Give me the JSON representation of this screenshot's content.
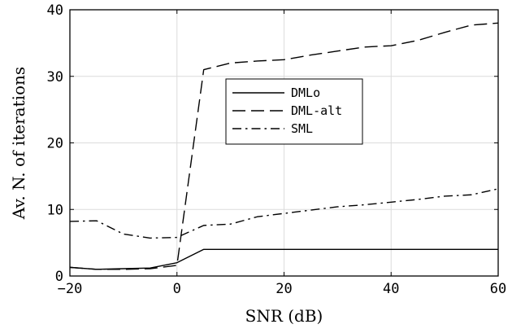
{
  "chart_data": {
    "type": "line",
    "title": "",
    "xlabel": "SNR (dB)",
    "ylabel": "Av. N. of iterations",
    "xlim": [
      -20,
      60
    ],
    "ylim": [
      0,
      40
    ],
    "xticks": [
      -20,
      0,
      20,
      40,
      60
    ],
    "yticks": [
      0,
      10,
      20,
      30,
      40
    ],
    "grid": true,
    "legend_position": "upper-middle",
    "series": [
      {
        "name": "DMLo",
        "style": "solid",
        "x": [
          -20,
          -15,
          -10,
          -5,
          0,
          5,
          10,
          15,
          20,
          25,
          30,
          35,
          40,
          45,
          50,
          55,
          60
        ],
        "y": [
          1.3,
          1.0,
          1.1,
          1.2,
          2.0,
          4.0,
          4.0,
          4.0,
          4.0,
          4.0,
          4.0,
          4.0,
          4.0,
          4.0,
          4.0,
          4.0,
          4.0
        ]
      },
      {
        "name": "DML-alt",
        "style": "dashed",
        "x": [
          -20,
          -15,
          -10,
          -5,
          0,
          5,
          10,
          15,
          20,
          25,
          30,
          35,
          40,
          45,
          50,
          55,
          60
        ],
        "y": [
          1.3,
          1.0,
          1.0,
          1.1,
          1.6,
          31.0,
          32.0,
          32.3,
          32.5,
          33.2,
          33.8,
          34.4,
          34.6,
          35.4,
          36.6,
          37.7,
          38.0
        ]
      },
      {
        "name": "SML",
        "style": "dashdot",
        "x": [
          -20,
          -15,
          -10,
          -5,
          0,
          5,
          10,
          15,
          20,
          25,
          30,
          35,
          40,
          45,
          50,
          55,
          60
        ],
        "y": [
          8.2,
          8.3,
          6.3,
          5.7,
          5.8,
          7.6,
          7.8,
          8.9,
          9.4,
          9.9,
          10.4,
          10.7,
          11.1,
          11.5,
          12.0,
          12.2,
          13.1
        ]
      }
    ]
  }
}
